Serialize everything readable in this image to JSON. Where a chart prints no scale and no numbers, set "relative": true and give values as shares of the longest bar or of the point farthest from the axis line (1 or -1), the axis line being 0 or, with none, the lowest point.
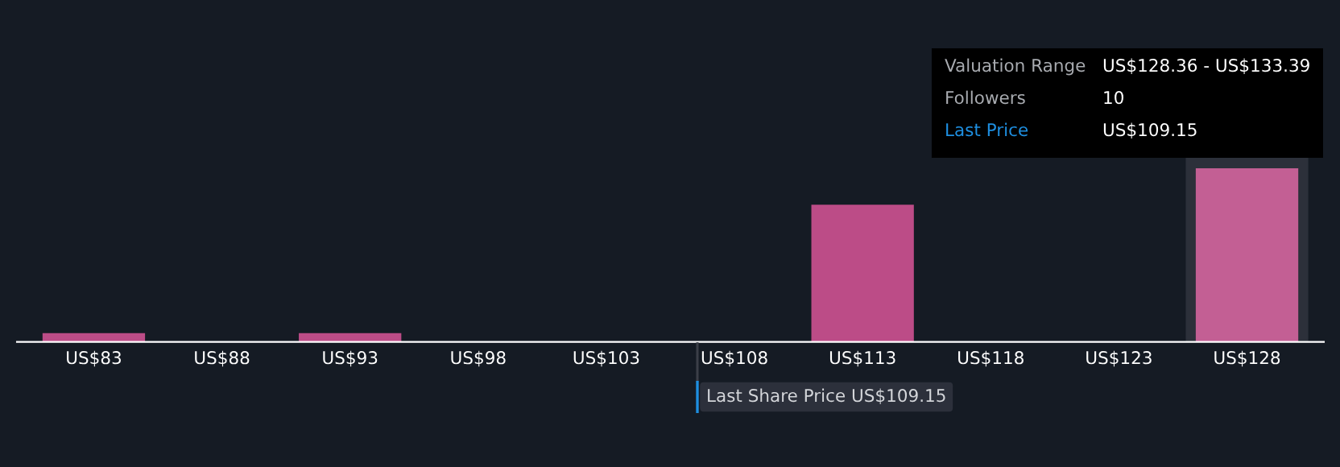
{
  "chart_data": {
    "type": "bar",
    "relative": true,
    "categories": [
      "US$83",
      "US$88",
      "US$93",
      "US$98",
      "US$103",
      "US$108",
      "US$113",
      "US$118",
      "US$123",
      "US$128"
    ],
    "values": [
      0.05,
      0,
      0.05,
      0,
      0,
      0,
      0.79,
      0,
      0,
      1
    ],
    "colors": [
      "#bc4c87",
      "#bc4c87",
      "#bc4c87",
      "#bc4c87",
      "#bc4c87",
      "#bc4c87",
      "#bc4c87",
      "#bc4c87",
      "#bc4c87",
      "#c35f94"
    ],
    "bands": [
      {
        "axis": "x",
        "from": "US$128",
        "to": "US$128",
        "color": "#2c303a"
      }
    ],
    "annotations": [
      "Valuation Range",
      "US$128.36 - US$133.39",
      "Followers",
      "10",
      "Last Price",
      "US$109.15",
      "Last Share Price US$109.15"
    ]
  }
}
